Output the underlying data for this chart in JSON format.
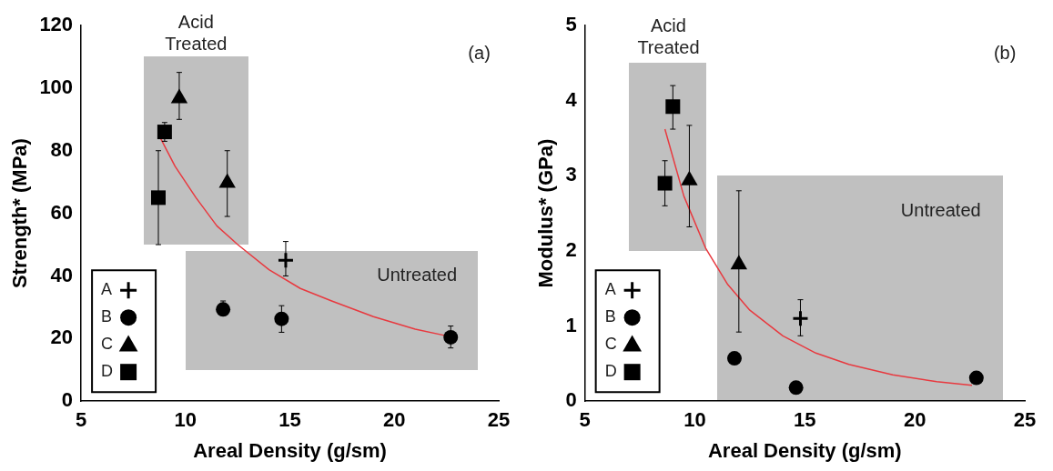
{
  "chart_data": [
    {
      "type": "scatter",
      "xlabel": "Areal Density (g/sm)",
      "ylabel": "Strength* (MPa)",
      "xlim": [
        5,
        25
      ],
      "xticks": [
        5,
        10,
        15,
        20,
        25
      ],
      "ylim": [
        0,
        120
      ],
      "yticks": [
        0,
        20,
        40,
        60,
        80,
        100,
        120
      ],
      "grid": false,
      "legend": "bottom left",
      "annotations": [
        "Acid Treated",
        "Untreated",
        "(a)"
      ],
      "series": [
        {
          "name": "A",
          "color": "#000000",
          "marker": "cross",
          "x": [
            14.8
          ],
          "values": [
            45
          ],
          "errors": [
            [
              40,
              51
            ]
          ]
        },
        {
          "name": "B",
          "color": "#000000",
          "marker": "circle",
          "x": [
            11.8,
            14.6,
            22.7
          ],
          "values": [
            29.3,
            26.3,
            20.4
          ],
          "errors": [
            [
              28,
              32
            ],
            [
              22,
              30.5
            ],
            [
              17,
              24
            ]
          ]
        },
        {
          "name": "C",
          "color": "#000000",
          "marker": "triangle",
          "x": [
            9.7,
            12
          ],
          "values": [
            97,
            70
          ],
          "errors": [
            [
              90,
              105
            ],
            [
              59,
              80
            ]
          ]
        },
        {
          "name": "D",
          "color": "#000000",
          "marker": "square",
          "x": [
            8.7,
            9
          ],
          "values": [
            65,
            86
          ],
          "errors": [
            [
              50,
              80
            ],
            [
              83,
              89
            ]
          ]
        },
        {
          "type": "line",
          "color": "#e8393f",
          "marker": "none",
          "x": [
            8.8,
            9.5,
            10.5,
            11.5,
            12.5,
            14,
            15.5,
            17,
            19,
            21,
            22.4
          ],
          "values": [
            84,
            75,
            65,
            56,
            50,
            42,
            36,
            32,
            27,
            23,
            21
          ]
        }
      ]
    },
    {
      "type": "scatter",
      "xlabel": "Areal Density (g/sm)",
      "ylabel": "Modulus* (GPa)",
      "xlim": [
        5,
        25
      ],
      "xticks": [
        5,
        10,
        15,
        20,
        25
      ],
      "ylim": [
        0,
        5
      ],
      "yticks": [
        0,
        1,
        2,
        3,
        4,
        5
      ],
      "grid": false,
      "legend": "bottom left",
      "annotations": [
        "Acid Treated",
        "Untreated",
        "(b)"
      ],
      "series": [
        {
          "name": "A",
          "color": "#000000",
          "marker": "cross",
          "x": [
            14.8
          ],
          "values": [
            1.1
          ],
          "errors": [
            [
              0.87,
              1.35
            ]
          ]
        },
        {
          "name": "B",
          "color": "#000000",
          "marker": "circle",
          "x": [
            11.8,
            14.6,
            22.8
          ],
          "values": [
            0.57,
            0.18,
            0.31
          ]
        },
        {
          "name": "C",
          "color": "#000000",
          "marker": "triangle",
          "x": [
            9.75,
            12
          ],
          "values": [
            2.95,
            1.83
          ],
          "errors": [
            [
              2.32,
              3.67
            ],
            [
              0.92,
              2.8
            ]
          ]
        },
        {
          "name": "D",
          "color": "#000000",
          "marker": "square",
          "x": [
            9,
            8.64
          ],
          "values": [
            3.92,
            2.9
          ],
          "errors": [
            [
              3.62,
              4.2
            ],
            [
              2.6,
              3.2
            ]
          ]
        },
        {
          "type": "line",
          "color": "#e8393f",
          "marker": "none",
          "x": [
            8.64,
            9.5,
            10.5,
            11.5,
            12.5,
            14,
            15.5,
            17,
            19,
            21,
            22.6
          ],
          "values": [
            3.62,
            2.73,
            2.03,
            1.55,
            1.21,
            0.87,
            0.64,
            0.49,
            0.35,
            0.26,
            0.21
          ]
        }
      ]
    }
  ]
}
